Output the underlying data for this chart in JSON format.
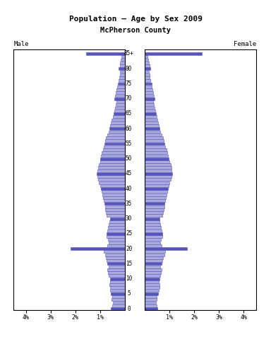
{
  "title_line1": "Population — Age by Sex 2009",
  "title_line2": "McPherson County",
  "male_label": "Male",
  "female_label": "Female",
  "bar_color_dark": "#5555bb",
  "bar_color_light": "#aaaadd",
  "background": "#ffffff",
  "xlim": 4.5,
  "ages": [
    0,
    1,
    2,
    3,
    4,
    5,
    6,
    7,
    8,
    9,
    10,
    11,
    12,
    13,
    14,
    15,
    16,
    17,
    18,
    19,
    20,
    21,
    22,
    23,
    24,
    25,
    26,
    27,
    28,
    29,
    30,
    31,
    32,
    33,
    34,
    35,
    36,
    37,
    38,
    39,
    40,
    41,
    42,
    43,
    44,
    45,
    46,
    47,
    48,
    49,
    50,
    51,
    52,
    53,
    54,
    55,
    56,
    57,
    58,
    59,
    60,
    61,
    62,
    63,
    64,
    65,
    66,
    67,
    68,
    69,
    70,
    71,
    72,
    73,
    74,
    75,
    76,
    77,
    78,
    79,
    80,
    81,
    82,
    83,
    84,
    85
  ],
  "male_pct": [
    0.55,
    0.5,
    0.48,
    0.52,
    0.5,
    0.55,
    0.58,
    0.6,
    0.62,
    0.58,
    0.6,
    0.65,
    0.68,
    0.7,
    0.65,
    0.7,
    0.72,
    0.75,
    0.8,
    0.85,
    2.2,
    0.7,
    0.65,
    0.68,
    0.72,
    0.72,
    0.7,
    0.68,
    0.65,
    0.62,
    0.6,
    0.72,
    0.75,
    0.78,
    0.8,
    0.82,
    0.85,
    0.88,
    0.9,
    0.92,
    0.95,
    1.0,
    1.05,
    1.08,
    1.1,
    1.12,
    1.1,
    1.08,
    1.05,
    1.0,
    0.98,
    0.95,
    0.92,
    0.88,
    0.85,
    0.82,
    0.78,
    0.75,
    0.7,
    0.65,
    0.62,
    0.58,
    0.55,
    0.52,
    0.48,
    0.45,
    0.42,
    0.38,
    0.35,
    0.32,
    0.42,
    0.38,
    0.35,
    0.32,
    0.3,
    0.28,
    0.25,
    0.22,
    0.2,
    0.18,
    0.25,
    0.2,
    0.18,
    0.15,
    0.12,
    1.55
  ],
  "female_pct": [
    0.5,
    0.48,
    0.45,
    0.48,
    0.46,
    0.52,
    0.55,
    0.58,
    0.6,
    0.55,
    0.58,
    0.62,
    0.65,
    0.68,
    0.62,
    0.68,
    0.7,
    0.72,
    0.78,
    0.82,
    1.7,
    0.68,
    0.62,
    0.65,
    0.7,
    0.7,
    0.68,
    0.65,
    0.62,
    0.6,
    0.58,
    0.7,
    0.72,
    0.75,
    0.78,
    0.8,
    0.82,
    0.85,
    0.88,
    0.9,
    0.92,
    0.95,
    1.0,
    1.05,
    1.08,
    1.1,
    1.08,
    1.06,
    1.04,
    0.98,
    0.96,
    0.93,
    0.9,
    0.86,
    0.82,
    0.8,
    0.76,
    0.72,
    0.68,
    0.63,
    0.6,
    0.56,
    0.52,
    0.5,
    0.46,
    0.44,
    0.42,
    0.38,
    0.36,
    0.34,
    0.4,
    0.36,
    0.33,
    0.3,
    0.28,
    0.26,
    0.23,
    0.2,
    0.18,
    0.16,
    0.22,
    0.18,
    0.16,
    0.13,
    0.1,
    2.3
  ]
}
